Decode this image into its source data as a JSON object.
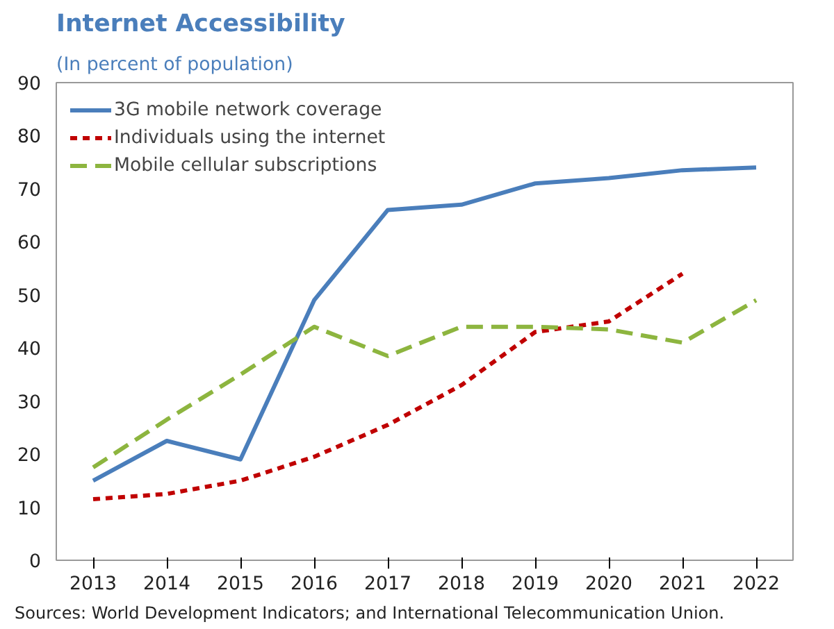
{
  "chart_data": {
    "type": "line",
    "title": "Internet Accessibility",
    "subtitle": "(In percent of population)",
    "categories": [
      "2013",
      "2014",
      "2015",
      "2016",
      "2017",
      "2018",
      "2019",
      "2020",
      "2021",
      "2022"
    ],
    "series": [
      {
        "name": "3G mobile network coverage",
        "color": "#4a7ebb",
        "line_style": "solid",
        "values": [
          15,
          22.5,
          19,
          49,
          66,
          67,
          71,
          72,
          73.5,
          74
        ]
      },
      {
        "name": "Individuals using the internet",
        "color": "#c00000",
        "line_style": "dotted",
        "values": [
          11.5,
          12.5,
          15,
          19.5,
          25.5,
          33,
          43,
          45,
          54,
          null
        ]
      },
      {
        "name": "Mobile cellular subscriptions",
        "color": "#8db53f",
        "line_style": "dashed",
        "values": [
          17.5,
          26.5,
          35,
          44,
          38.5,
          44,
          44,
          43.5,
          41,
          49
        ]
      }
    ],
    "ylim": [
      0,
      90
    ],
    "yticks": [
      0,
      10,
      20,
      30,
      40,
      50,
      60,
      70,
      80,
      90
    ],
    "grid": false,
    "legend": "top left",
    "annotations": [
      "Sources: World Development Indicators; and International Telecommunication Union."
    ]
  }
}
